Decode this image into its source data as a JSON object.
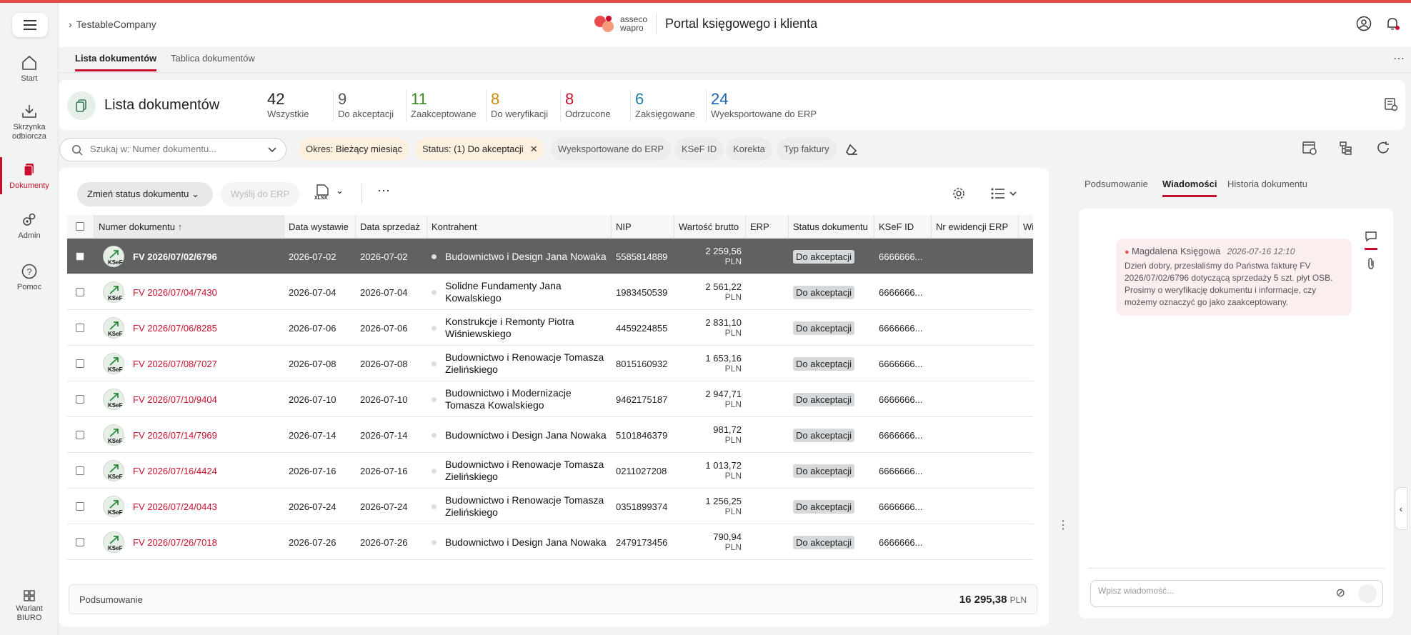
{
  "header": {
    "breadcrumb": "TestableCompany",
    "logo_line1": "asseco",
    "logo_line2": "wapro",
    "portal_title": "Portal księgowego i klienta"
  },
  "sidebar": {
    "items": [
      {
        "label": "Start",
        "icon": "home-icon"
      },
      {
        "label": "Skrzynka odbiorcza",
        "icon": "inbox-download-icon"
      },
      {
        "label": "Dokumenty",
        "icon": "documents-icon",
        "active": true
      },
      {
        "label": "Admin",
        "icon": "admin-gears-icon"
      },
      {
        "label": "Pomoc",
        "icon": "help-icon"
      }
    ],
    "bottom_label": "Wariant BIURO"
  },
  "tabs": [
    "Lista dokumentów",
    "Tablica dokumentów"
  ],
  "stats": {
    "title": "Lista dokumentów",
    "items": [
      {
        "num": "42",
        "label": "Wszystkie",
        "color": "#222222"
      },
      {
        "num": "9",
        "label": "Do akceptacji",
        "color": "#555555"
      },
      {
        "num": "11",
        "label": "Zaakceptowane",
        "color": "#3a8a1f"
      },
      {
        "num": "8",
        "label": "Do weryfikacji",
        "color": "#c98a0a"
      },
      {
        "num": "8",
        "label": "Odrzucone",
        "color": "#c8102e"
      },
      {
        "num": "6",
        "label": "Zaksięgowane",
        "color": "#1f7fa0"
      },
      {
        "num": "24",
        "label": "Wyeksportowane do ERP",
        "color": "#1f63b6"
      }
    ]
  },
  "filters": {
    "search_placeholder": "Szukaj w: Numer dokumentu...",
    "okres_label": "Okres:",
    "okres_value": "Bieżący miesiąc",
    "status_label": "Status:",
    "status_value": "(1) Do akceptacji",
    "chips": [
      "Wyeksportowane do ERP",
      "KSeF ID",
      "Korekta",
      "Typ faktury"
    ]
  },
  "toolbar": {
    "change_status": "Zmień status dokumentu",
    "send_erp": "Wyślij do ERP",
    "export_format": "XLSX"
  },
  "columns": [
    "Numer dokumentu",
    "Data wystawie",
    "Data sprzedaż",
    "Kontrahent",
    "NIP",
    "Wartość brutto",
    "ERP",
    "Status dokumentu",
    "KSeF ID",
    "Nr ewidencji ERP",
    "Wi"
  ],
  "rows": [
    {
      "num": "FV 2026/07/02/6796",
      "d1": "2026-07-02",
      "d2": "2026-07-02",
      "kontrahent": "Budownictwo i Design Jana Nowaka",
      "nip": "5585814889",
      "amount": "2 259,56",
      "cur": "PLN",
      "status": "Do akceptacji",
      "ksef": "6666666...",
      "selected": true
    },
    {
      "num": "FV 2026/07/04/7430",
      "d1": "2026-07-04",
      "d2": "2026-07-04",
      "kontrahent": "Solidne Fundamenty Jana Kowalskiego",
      "nip": "1983450539",
      "amount": "2 561,22",
      "cur": "PLN",
      "status": "Do akceptacji",
      "ksef": "6666666..."
    },
    {
      "num": "FV 2026/07/06/8285",
      "d1": "2026-07-06",
      "d2": "2026-07-06",
      "kontrahent": "Konstrukcje i Remonty Piotra Wiśniewskiego",
      "nip": "4459224855",
      "amount": "2 831,10",
      "cur": "PLN",
      "status": "Do akceptacji",
      "ksef": "6666666..."
    },
    {
      "num": "FV 2026/07/08/7027",
      "d1": "2026-07-08",
      "d2": "2026-07-08",
      "kontrahent": "Budownictwo i Renowacje Tomasza Zielińskiego",
      "nip": "8015160932",
      "amount": "1 653,16",
      "cur": "PLN",
      "status": "Do akceptacji",
      "ksef": "6666666..."
    },
    {
      "num": "FV 2026/07/10/9404",
      "d1": "2026-07-10",
      "d2": "2026-07-10",
      "kontrahent": "Budownictwo i Modernizacje Tomasza Kowalskiego",
      "nip": "9462175187",
      "amount": "2 947,71",
      "cur": "PLN",
      "status": "Do akceptacji",
      "ksef": "6666666..."
    },
    {
      "num": "FV 2026/07/14/7969",
      "d1": "2026-07-14",
      "d2": "2026-07-14",
      "kontrahent": "Budownictwo i Design Jana Nowaka",
      "nip": "5101846379",
      "amount": "981,72",
      "cur": "PLN",
      "status": "Do akceptacji",
      "ksef": "6666666..."
    },
    {
      "num": "FV 2026/07/16/4424",
      "d1": "2026-07-16",
      "d2": "2026-07-16",
      "kontrahent": "Budownictwo i Renowacje Tomasza Zielińskiego",
      "nip": "0211027208",
      "amount": "1 013,72",
      "cur": "PLN",
      "status": "Do akceptacji",
      "ksef": "6666666..."
    },
    {
      "num": "FV 2026/07/24/0443",
      "d1": "2026-07-24",
      "d2": "2026-07-24",
      "kontrahent": "Budownictwo i Renowacje Tomasza Zielińskiego",
      "nip": "0351899374",
      "amount": "1 256,25",
      "cur": "PLN",
      "status": "Do akceptacji",
      "ksef": "6666666..."
    },
    {
      "num": "FV 2026/07/26/7018",
      "d1": "2026-07-26",
      "d2": "2026-07-26",
      "kontrahent": "Budownictwo i Design Jana Nowaka",
      "nip": "2479173456",
      "amount": "790,94",
      "cur": "PLN",
      "status": "Do akceptacji",
      "ksef": "6666666..."
    }
  ],
  "summary": {
    "label": "Podsumowanie",
    "total": "16 295,38",
    "cur": "PLN"
  },
  "right_panel": {
    "tabs": [
      "Podsumowanie",
      "Wiadomości",
      "Historia dokumentu"
    ],
    "message": {
      "author": "Magdalena Księgowa",
      "date": "2026-07-16 12:10",
      "text": "Dzień dobry, przesłaliśmy do Państwa fakturę FV 2026/07/02/6796 dotyczącą sprzedaży 5 szt. płyt OSB. Prosimy o weryfikację dokumentu i informacje, czy możemy oznaczyć go jako zaakceptowany."
    },
    "input_placeholder": "Wpisz wiadomość..."
  }
}
